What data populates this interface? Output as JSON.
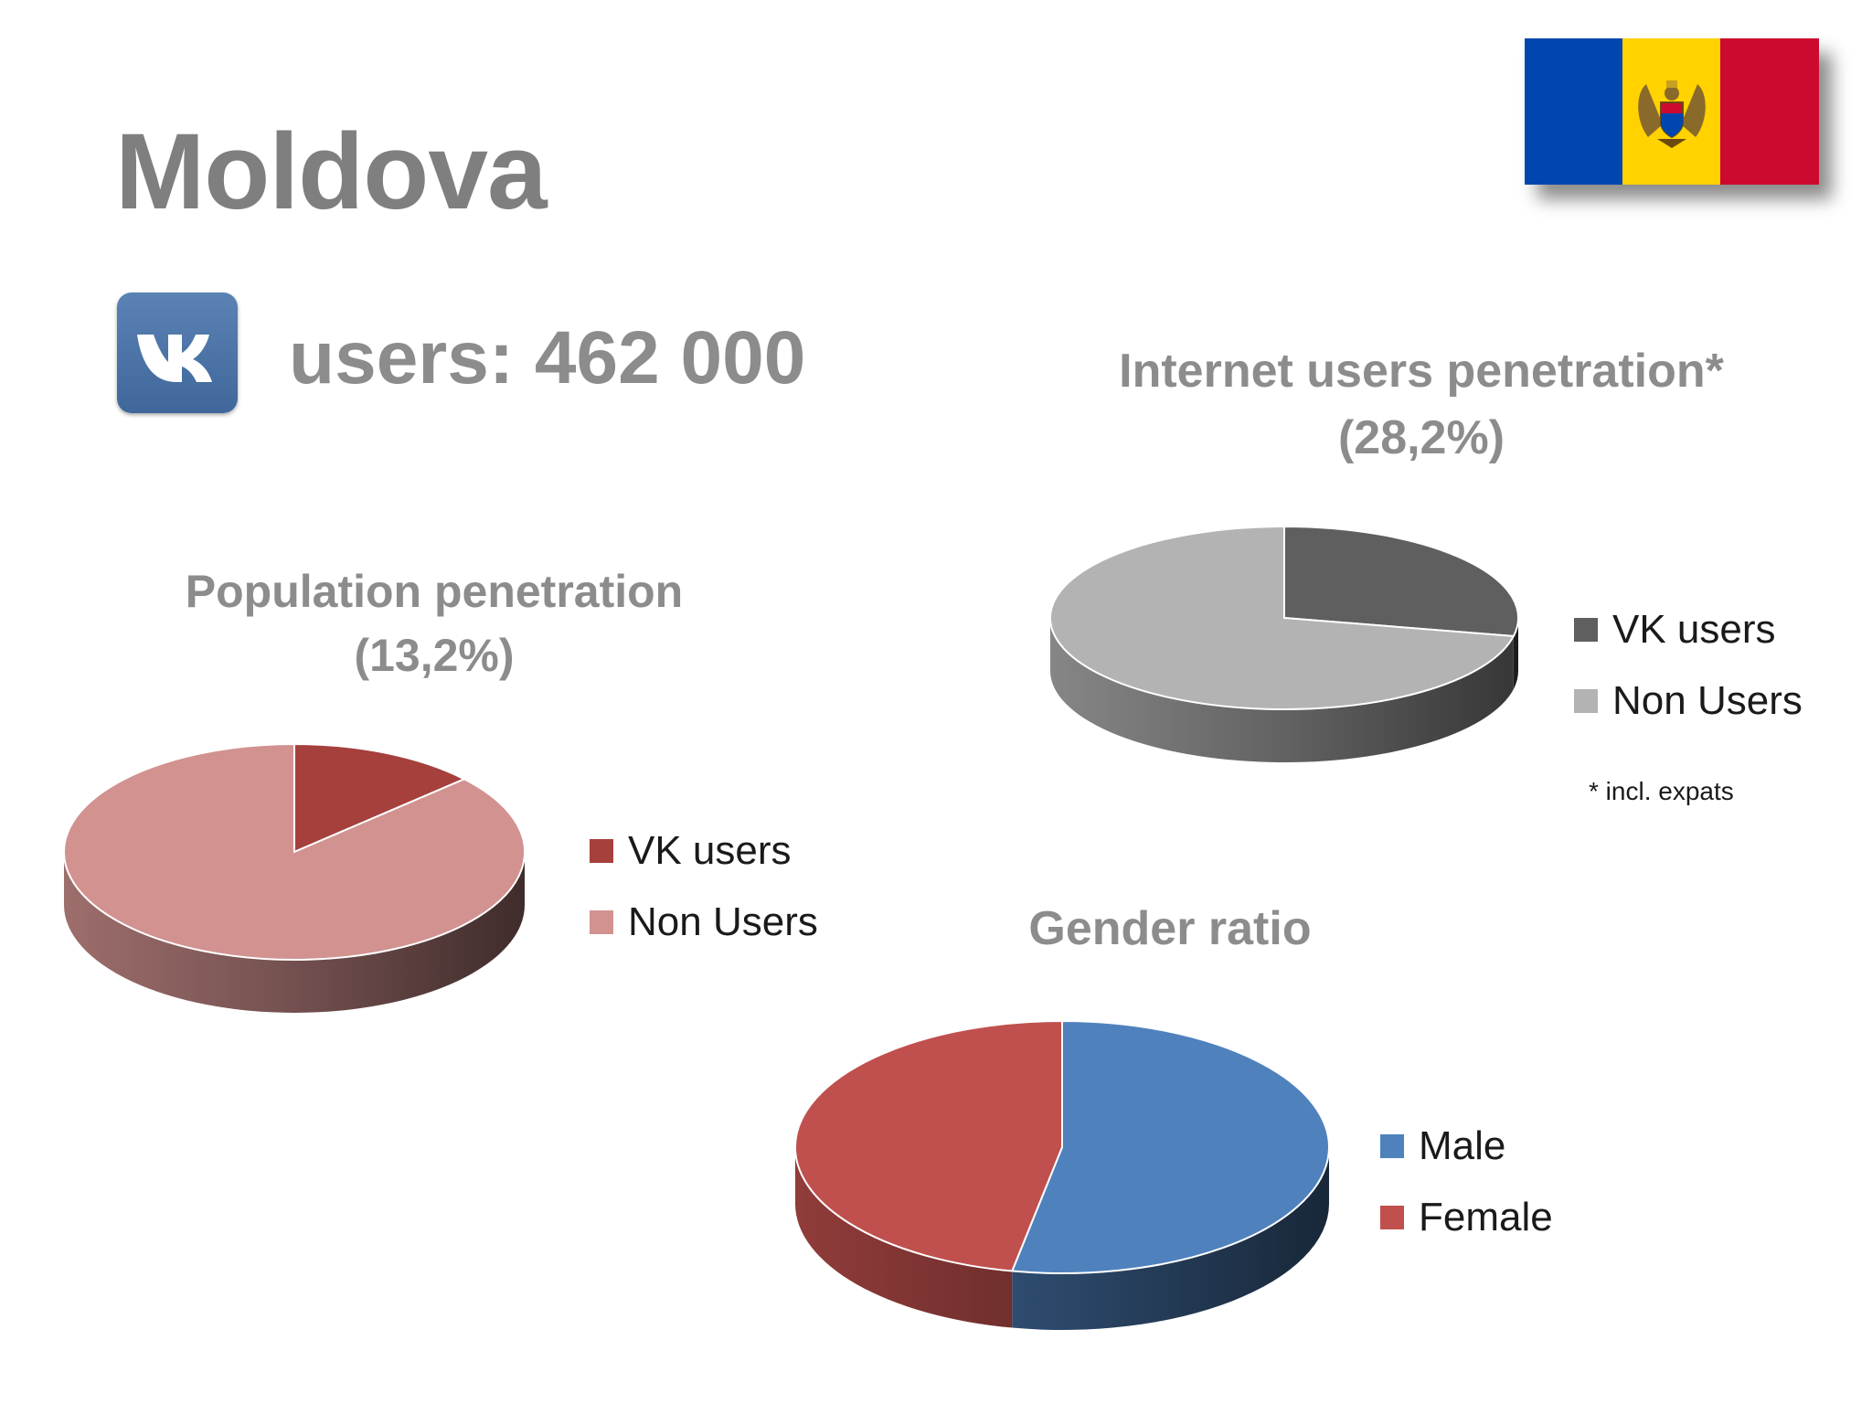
{
  "slide": {
    "title": "Moldova",
    "users_label": "users: 462 000",
    "vk_logo_text": "VK",
    "note": "* incl. expats"
  },
  "flag": {
    "colors": {
      "blue": "#0046ae",
      "yellow": "#ffd200",
      "red": "#cc092f"
    }
  },
  "chart_data": [
    {
      "type": "pie",
      "title": "Population penetration",
      "subtitle": "(13,2%)",
      "series": [
        {
          "values": [
            13.2,
            86.8
          ]
        }
      ],
      "categories": [
        "VK users",
        "Non Users"
      ],
      "colors": [
        "#a5403d",
        "#d19290"
      ],
      "legend": "right"
    },
    {
      "type": "pie",
      "title": "Internet users penetration*",
      "subtitle": "(28,2%)",
      "series": [
        {
          "values": [
            28.2,
            71.8
          ]
        }
      ],
      "categories": [
        "VK users",
        "Non Users"
      ],
      "colors": [
        "#5f5f5f",
        "#b3b3b3"
      ],
      "legend": "right"
    },
    {
      "type": "pie",
      "title": "Gender ratio",
      "subtitle": "",
      "series": [
        {
          "values": [
            53,
            47
          ]
        }
      ],
      "categories": [
        "Male",
        "Female"
      ],
      "colors": [
        "#4f81bd",
        "#c0504d"
      ],
      "legend": "right"
    }
  ]
}
